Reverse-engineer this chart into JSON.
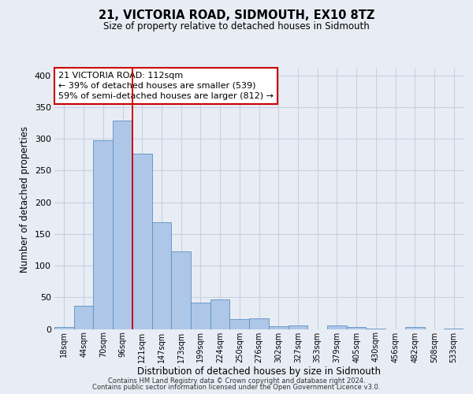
{
  "title": "21, VICTORIA ROAD, SIDMOUTH, EX10 8TZ",
  "subtitle": "Size of property relative to detached houses in Sidmouth",
  "xlabel": "Distribution of detached houses by size in Sidmouth",
  "ylabel": "Number of detached properties",
  "bar_labels": [
    "18sqm",
    "44sqm",
    "70sqm",
    "96sqm",
    "121sqm",
    "147sqm",
    "173sqm",
    "199sqm",
    "224sqm",
    "250sqm",
    "276sqm",
    "302sqm",
    "327sqm",
    "353sqm",
    "379sqm",
    "405sqm",
    "430sqm",
    "456sqm",
    "482sqm",
    "508sqm",
    "533sqm"
  ],
  "bar_values": [
    3,
    37,
    297,
    328,
    277,
    168,
    122,
    42,
    46,
    15,
    17,
    4,
    5,
    0,
    6,
    3,
    1,
    0,
    3,
    0,
    1
  ],
  "bar_color": "#aec6e8",
  "bar_edge_color": "#5a8fc2",
  "property_line_bin": 4,
  "annotation_title": "21 VICTORIA ROAD: 112sqm",
  "annotation_line1": "← 39% of detached houses are smaller (539)",
  "annotation_line2": "59% of semi-detached houses are larger (812) →",
  "annotation_box_color": "#ffffff",
  "annotation_box_edge_color": "#cc0000",
  "vline_color": "#cc0000",
  "ylim": [
    0,
    410
  ],
  "yticks": [
    0,
    50,
    100,
    150,
    200,
    250,
    300,
    350,
    400
  ],
  "grid_color": "#c8d0df",
  "background_color": "#e8edf5",
  "footer1": "Contains HM Land Registry data © Crown copyright and database right 2024.",
  "footer2": "Contains public sector information licensed under the Open Government Licence v3.0."
}
